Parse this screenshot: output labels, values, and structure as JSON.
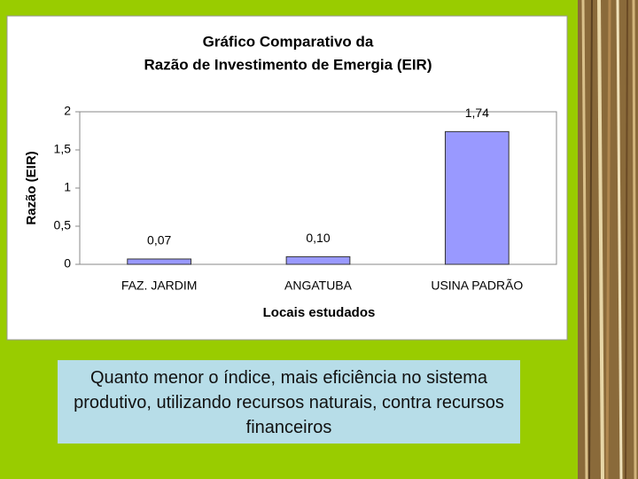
{
  "chart_data": {
    "type": "bar",
    "title_lines": [
      "Gráfico Comparativo da",
      "Razão de Investimento de Emergia (EIR)"
    ],
    "categories": [
      "FAZ. JARDIM",
      "ANGATUBA",
      "USINA PADRÃO"
    ],
    "values": [
      0.07,
      0.1,
      1.74
    ],
    "value_labels": [
      "0,07",
      "0,10",
      "1,74"
    ],
    "color": "#9999ff",
    "ylim": [
      0,
      2
    ],
    "yticks": [
      0,
      {
        "value": 0.5,
        "label": "0,5"
      },
      1,
      {
        "value": 1.5,
        "label": "1,5"
      },
      2
    ],
    "x_label": "Locais estudados",
    "y_label": "Razão (EIR)",
    "grid": false
  },
  "caption": "Quanto menor o índice, mais eficiência no sistema produtivo, utilizando recursos naturais, contra recursos financeiros"
}
